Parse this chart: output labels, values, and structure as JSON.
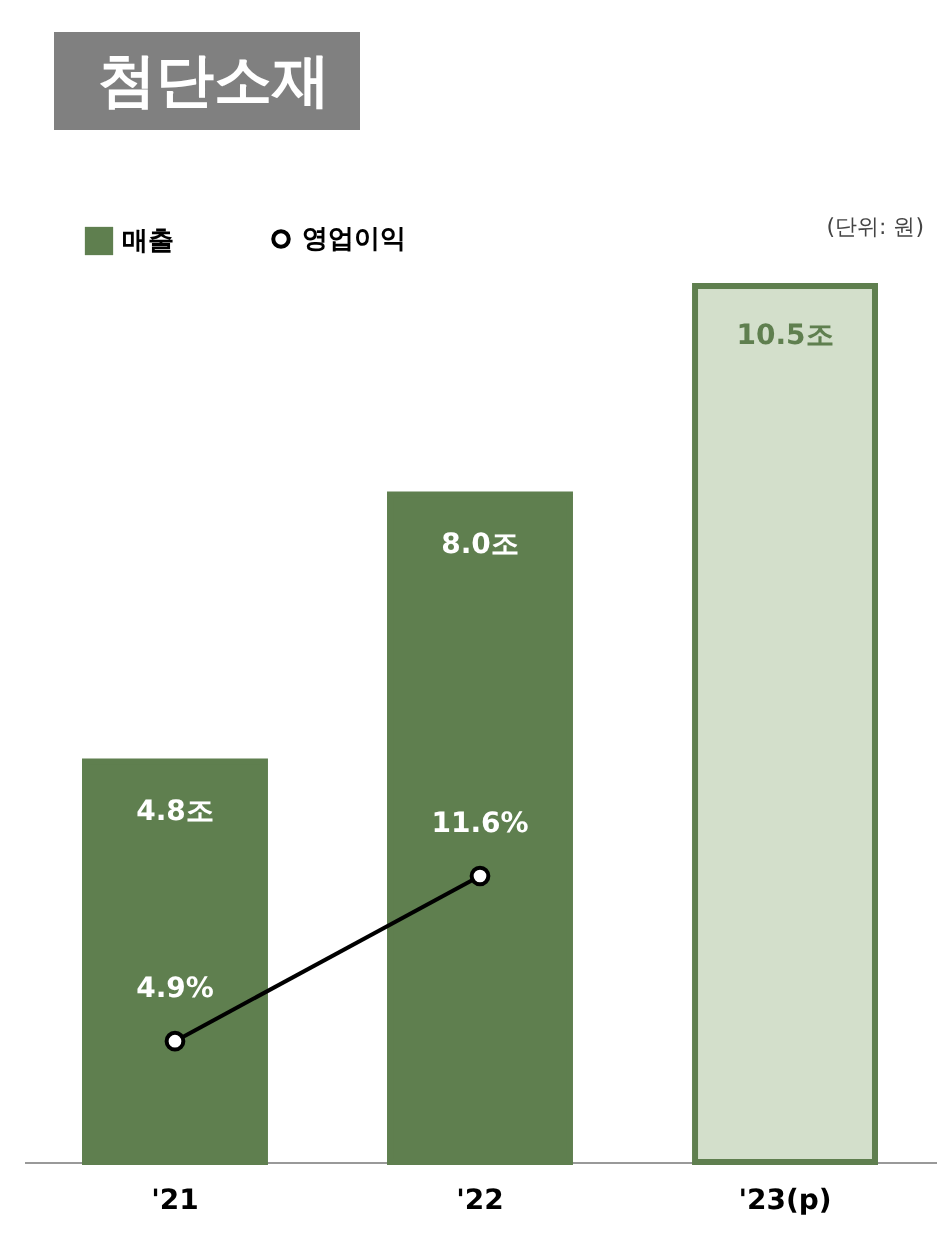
{
  "chart_data": {
    "type": "bar",
    "title": "첨단소재",
    "categories": [
      "'21",
      "'22",
      "'23(p)"
    ],
    "series": [
      {
        "name": "매출",
        "color": "#5f7f4f",
        "colors": [
          "#5f7f4f",
          "#5f7f4f",
          "#d3dfcb"
        ],
        "values": [
          4.8,
          8.0,
          10.5
        ],
        "value_labels": [
          "4.8조",
          "8.0조",
          "10.5조"
        ]
      },
      {
        "name": "영업이익",
        "type": "line",
        "axis": "y2",
        "color": "#000000",
        "values": [
          4.9,
          11.6,
          null
        ],
        "value_labels": [
          "4.9%",
          "11.6%",
          null
        ]
      }
    ],
    "annotations": [
      "(단위: 원)"
    ],
    "legend": "top left",
    "marker": "circle",
    "tick_labels": "x"
  }
}
